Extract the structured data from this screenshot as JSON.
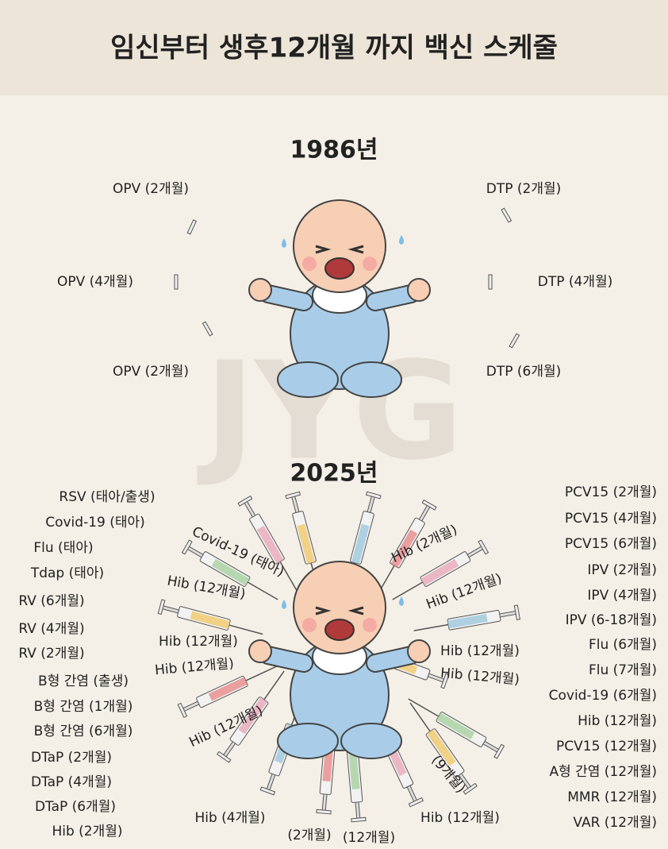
{
  "header": {
    "title": "임신부터 생후12개월 까지 백신 스케줄"
  },
  "watermark": "JYG",
  "section_1986": {
    "year": "1986년",
    "left": [
      "OPV (2개월)",
      "OPV (4개월)",
      "OPV (2개월)"
    ],
    "right": [
      "DTP (2개월)",
      "DTP (4개월)",
      "DTP (6개월)"
    ]
  },
  "section_2025": {
    "year": "2025년",
    "left": [
      "RSV (태아/출생)",
      "Covid-19 (태아)",
      "Flu (태아)",
      "Tdap (태아)",
      "RV (6개월)",
      "RV (4개월)",
      "RV (2개월)",
      "B형 간염 (출생)",
      "B형 간염 (1개월)",
      "B형 간염 (6개월)",
      "DTaP (2개월)",
      "DTaP (4개월)",
      "DTaP (6개월)",
      "Hib (2개월)"
    ],
    "right": [
      "PCV15 (2개월)",
      "PCV15 (4개월)",
      "PCV15 (6개월)",
      "IPV (2개월)",
      "IPV (4개월)",
      "IPV (6-18개월)",
      "Flu (6개월)",
      "Flu (7개월)",
      "Covid-19 (6개월)",
      "Hib (12개월)",
      "PCV15 (12개월)",
      "A형 간염 (12개월)",
      "MMR (12개월)",
      "VAR (12개월)"
    ],
    "syringe_labels": [
      "Covid-19 (태아)",
      "Hib (12개월)",
      "Hib (12개월)",
      "Hib (12개월)",
      "Hib (12개월)",
      "Hib (2개월)",
      "Hib (12개월)",
      "Hib (12개월)",
      "Hib (12개월)",
      "(9개월)",
      "Hib (4개월)",
      "(2개월)",
      "(12개월)",
      "Hib (12개월)"
    ]
  }
}
